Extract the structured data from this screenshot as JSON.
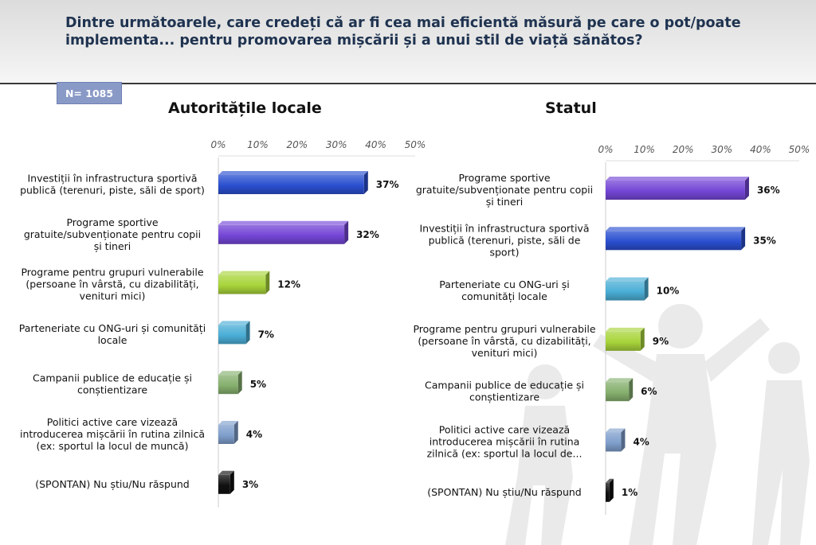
{
  "question": {
    "line1": "Dintre următoarele, care credeți că ar fi cea mai eficientă măsură pe care o pot/poate",
    "line2": "implementa... pentru promovarea mișcării și a unui stil de viață sănătos?"
  },
  "sample": {
    "label": "N= 1085"
  },
  "chart_data": [
    {
      "type": "bar",
      "orientation": "horizontal",
      "title": "Autoritățile locale",
      "xlim": [
        0,
        50
      ],
      "tick_labels": [
        "0%",
        "10%",
        "20%",
        "30%",
        "40%",
        "50%"
      ],
      "categories": [
        [
          "Investiții în infrastructura sportivă",
          "publică (terenuri, piste, săli de sport)"
        ],
        [
          "Programe sportive",
          "gratuite/subvenționate pentru copii",
          "și tineri"
        ],
        [
          "Programe pentru grupuri vulnerabile",
          "(persoane în vârstă, cu dizabilități,",
          "venituri mici)"
        ],
        [
          "Parteneriate cu ONG-uri și comunități",
          "locale"
        ],
        [
          "Campanii publice de educație și",
          "conștientizare"
        ],
        [
          "Politici active care vizează",
          "introducerea mișcării în rutina zilnică",
          "(ex: sportul la locul de muncă)"
        ],
        [
          "(SPONTAN) Nu știu/Nu răspund"
        ]
      ],
      "values": [
        37,
        32,
        12,
        7,
        5,
        4,
        3
      ],
      "value_labels": [
        "37%",
        "32%",
        "12%",
        "7%",
        "5%",
        "4%",
        "3%"
      ],
      "colors": [
        "#2a4fd0",
        "#7446d6",
        "#a8d43a",
        "#4aaed6",
        "#86b06e",
        "#7f9fcc",
        "#111111"
      ]
    },
    {
      "type": "bar",
      "orientation": "horizontal",
      "title": "Statul",
      "xlim": [
        0,
        50
      ],
      "tick_labels": [
        "0%",
        "10%",
        "20%",
        "30%",
        "40%",
        "50%"
      ],
      "categories": [
        [
          "Programe sportive",
          "gratuite/subvenționate pentru copii",
          "și tineri"
        ],
        [
          "Investiții în infrastructura sportivă",
          "publică (terenuri, piste, săli de",
          "sport)"
        ],
        [
          "Parteneriate cu ONG-uri și",
          "comunități locale"
        ],
        [
          "Programe pentru grupuri vulnerabile",
          "(persoane în vârstă, cu dizabilități,",
          "venituri mici)"
        ],
        [
          "Campanii publice de educație și",
          "conștientizare"
        ],
        [
          "Politici active care vizează",
          "introducerea mișcării în rutina",
          "zilnică (ex: sportul la locul de..."
        ],
        [
          "(SPONTAN) Nu știu/Nu răspund"
        ]
      ],
      "values": [
        36,
        35,
        10,
        9,
        6,
        4,
        1
      ],
      "value_labels": [
        "36%",
        "35%",
        "10%",
        "9%",
        "6%",
        "4%",
        "1%"
      ],
      "colors": [
        "#7446d6",
        "#2a4fd0",
        "#4aaed6",
        "#a8d43a",
        "#86b06e",
        "#7f9fcc",
        "#111111"
      ]
    }
  ]
}
